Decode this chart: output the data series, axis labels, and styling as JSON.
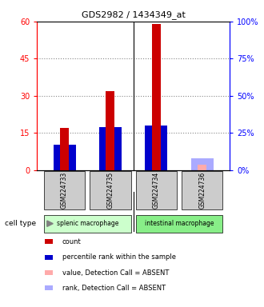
{
  "title": "GDS2982 / 1434349_at",
  "samples": [
    "GSM224733",
    "GSM224735",
    "GSM224734",
    "GSM224736"
  ],
  "groups": [
    {
      "name": "splenic macrophage",
      "samples": [
        "GSM224733",
        "GSM224735"
      ],
      "color": "#ccffcc"
    },
    {
      "name": "intestinal macrophage",
      "samples": [
        "GSM224734",
        "GSM224736"
      ],
      "color": "#88ee88"
    }
  ],
  "count_values": [
    17,
    32,
    59,
    2
  ],
  "count_colors": [
    "#cc0000",
    "#cc0000",
    "#cc0000",
    "#ffaaaa"
  ],
  "rank_values": [
    17,
    29,
    30,
    8
  ],
  "rank_colors": [
    "#0000cc",
    "#0000cc",
    "#0000cc",
    "#aaaaff"
  ],
  "absent_flags": [
    false,
    false,
    false,
    true
  ],
  "ylim_left": [
    0,
    60
  ],
  "ylim_right": [
    0,
    100
  ],
  "yticks_left": [
    0,
    15,
    30,
    45,
    60
  ],
  "yticks_right": [
    0,
    25,
    50,
    75,
    100
  ],
  "ytick_labels_left": [
    "0",
    "15",
    "30",
    "45",
    "60"
  ],
  "ytick_labels_right": [
    "0%",
    "25%",
    "50%",
    "75%",
    "100%"
  ],
  "legend_items": [
    {
      "color": "#cc0000",
      "label": "count"
    },
    {
      "color": "#0000cc",
      "label": "percentile rank within the sample"
    },
    {
      "color": "#ffaaaa",
      "label": "value, Detection Call = ABSENT"
    },
    {
      "color": "#aaaaff",
      "label": "rank, Detection Call = ABSENT"
    }
  ],
  "bar_width": 0.35,
  "sample_box_color": "#cccccc",
  "grid_color": "#888888"
}
